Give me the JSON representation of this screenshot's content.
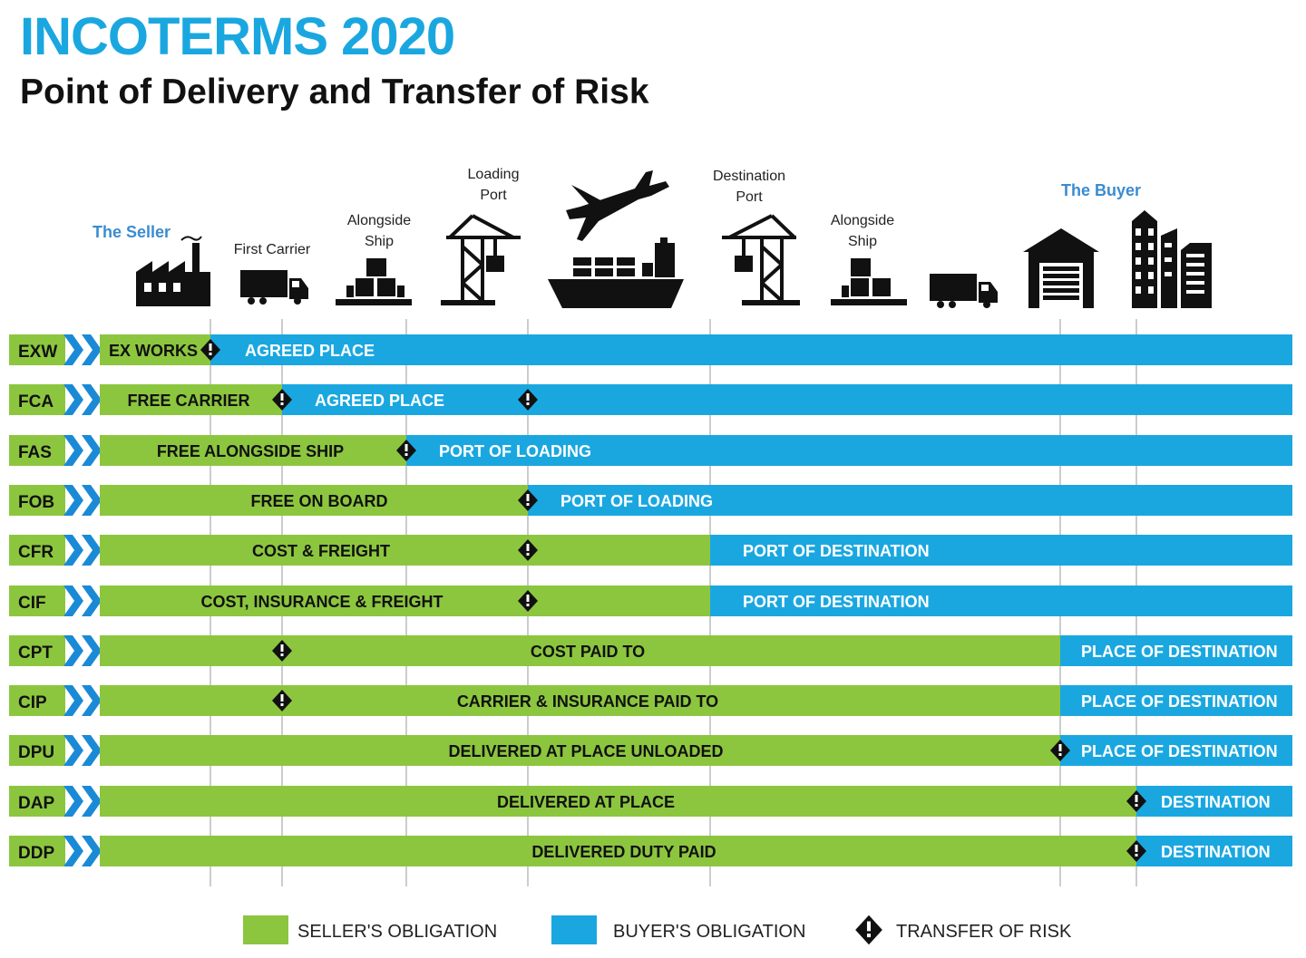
{
  "title": "INCOTERMS 2020",
  "subtitle": "Point of Delivery and Transfer of Risk",
  "colors": {
    "seller": "#8cc63f",
    "buyer": "#1aa7e0",
    "code_bg": "#8cc63f",
    "chevron": "#1a8ad6",
    "title": "#1aa7e0",
    "party": "#3a8cd0"
  },
  "header": {
    "seller": "The Seller",
    "first_carrier": "First Carrier",
    "alongside_ship_1": [
      "Alongside",
      "Ship"
    ],
    "loading_port": [
      "Loading",
      "Port"
    ],
    "destination_port": [
      "Destination",
      "Port"
    ],
    "alongside_ship_2": [
      "Alongside",
      "Ship"
    ],
    "buyer": "The Buyer"
  },
  "icons": [
    "factory-icon",
    "truck-icon",
    "boxes-icon",
    "crane-icon",
    "airplane-icon",
    "ship-icon",
    "crane-icon",
    "boxes-icon",
    "truck-icon",
    "warehouse-icon",
    "buildings-icon"
  ],
  "terms": [
    {
      "code": "EXW",
      "seller_label": "EX WORKS",
      "buyer_label": "AGREED PLACE",
      "split": 1,
      "risks": [
        1
      ]
    },
    {
      "code": "FCA",
      "seller_label": "FREE CARRIER",
      "buyer_label": "AGREED PLACE",
      "split": 2,
      "risks": [
        2,
        4
      ]
    },
    {
      "code": "FAS",
      "seller_label": "FREE ALONGSIDE SHIP",
      "buyer_label": "PORT OF LOADING",
      "split": 3,
      "risks": [
        3
      ]
    },
    {
      "code": "FOB",
      "seller_label": "FREE  ON BOARD",
      "buyer_label": "PORT OF LOADING",
      "split": 4,
      "risks": [
        4
      ]
    },
    {
      "code": "CFR",
      "seller_label": "COST & FREIGHT",
      "buyer_label": "PORT OF DESTINATION",
      "split": 5,
      "risks": [
        4
      ]
    },
    {
      "code": "CIF",
      "seller_label": "COST, INSURANCE & FREIGHT",
      "buyer_label": "PORT OF DESTINATION",
      "split": 5,
      "risks": [
        4
      ]
    },
    {
      "code": "CPT",
      "seller_label": "COST PAID TO",
      "buyer_label": "PLACE OF DESTINATION",
      "split": 6,
      "risks": [
        2
      ]
    },
    {
      "code": "CIP",
      "seller_label": "CARRIER & INSURANCE PAID TO",
      "buyer_label": "PLACE OF DESTINATION",
      "split": 6,
      "risks": [
        2
      ]
    },
    {
      "code": "DPU",
      "seller_label": "DELIVERED AT PLACE UNLOADED",
      "buyer_label": "PLACE OF DESTINATION",
      "split": 6,
      "risks": [
        6
      ]
    },
    {
      "code": "DAP",
      "seller_label": "DELIVERED AT PLACE",
      "buyer_label": "DESTINATION",
      "split": 7,
      "risks": [
        7
      ]
    },
    {
      "code": "DDP",
      "seller_label": "DELIVERED DUTY PAID",
      "buyer_label": "DESTINATION",
      "split": 7,
      "risks": [
        7
      ]
    }
  ],
  "legend": {
    "seller": "SELLER'S OBLIGATION",
    "buyer": "BUYER'S OBLIGATION",
    "risk": "TRANSFER OF RISK"
  }
}
